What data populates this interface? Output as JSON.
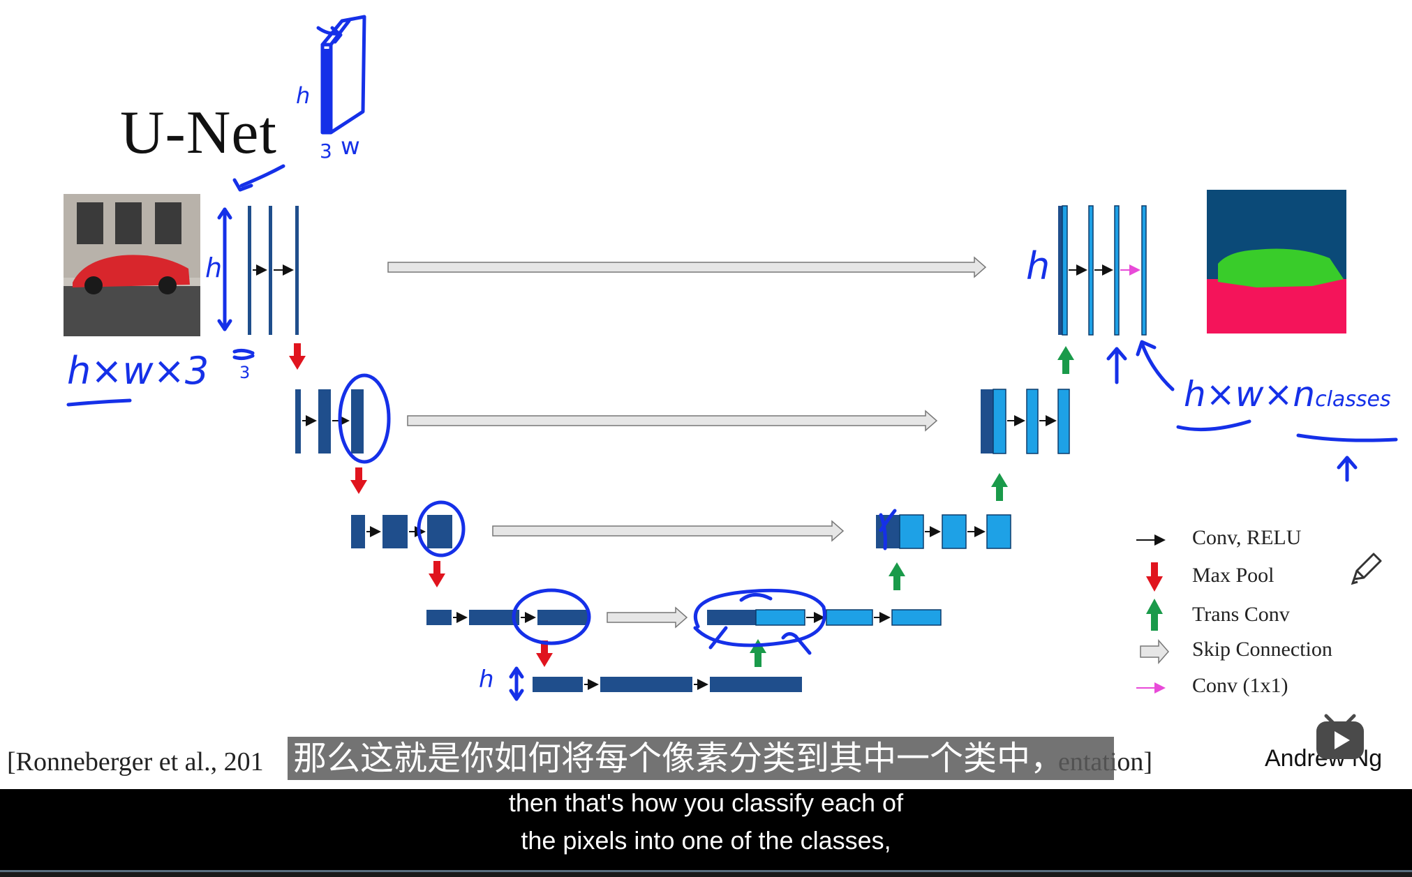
{
  "slide": {
    "title": "U-Net",
    "citation_start": "[Ronneberger et al., 201",
    "citation_end": "entation]",
    "author": "Andrew Ng"
  },
  "legend": {
    "items": [
      {
        "label": "Conv, RELU",
        "icon": "black-arrow-icon",
        "color": "#111111"
      },
      {
        "label": "Max Pool",
        "icon": "red-down-arrow-icon",
        "color": "#e0141e"
      },
      {
        "label": "Trans Conv",
        "icon": "green-up-arrow-icon",
        "color": "#1a9a4a"
      },
      {
        "label": "Skip Connection",
        "icon": "gray-skip-arrow-icon",
        "color": "#cccccc"
      },
      {
        "label": "Conv (1x1)",
        "icon": "pink-arrow-icon",
        "color": "#e84ad8"
      }
    ]
  },
  "annotations": {
    "input_dims": "h×w×3",
    "output_dims": "h×w×",
    "output_classes": "n",
    "output_classes_sub": "classes",
    "h": "h",
    "three": "3",
    "w": "w"
  },
  "subtitles": {
    "chinese": "那么这就是你如何将每个像素分类到其中一个类中，",
    "english_line1": "then that's how you classify each of",
    "english_line2": "the pixels into one of the classes,"
  },
  "colors": {
    "dark_block": "#1f4e8c",
    "light_block": "#1ea1e6",
    "ink": "#1530e8",
    "red": "#e0141e",
    "green": "#1a9a4a",
    "seg_bg": "#0b4a78",
    "seg_car": "#39cc2a",
    "seg_road": "#f4145a"
  }
}
